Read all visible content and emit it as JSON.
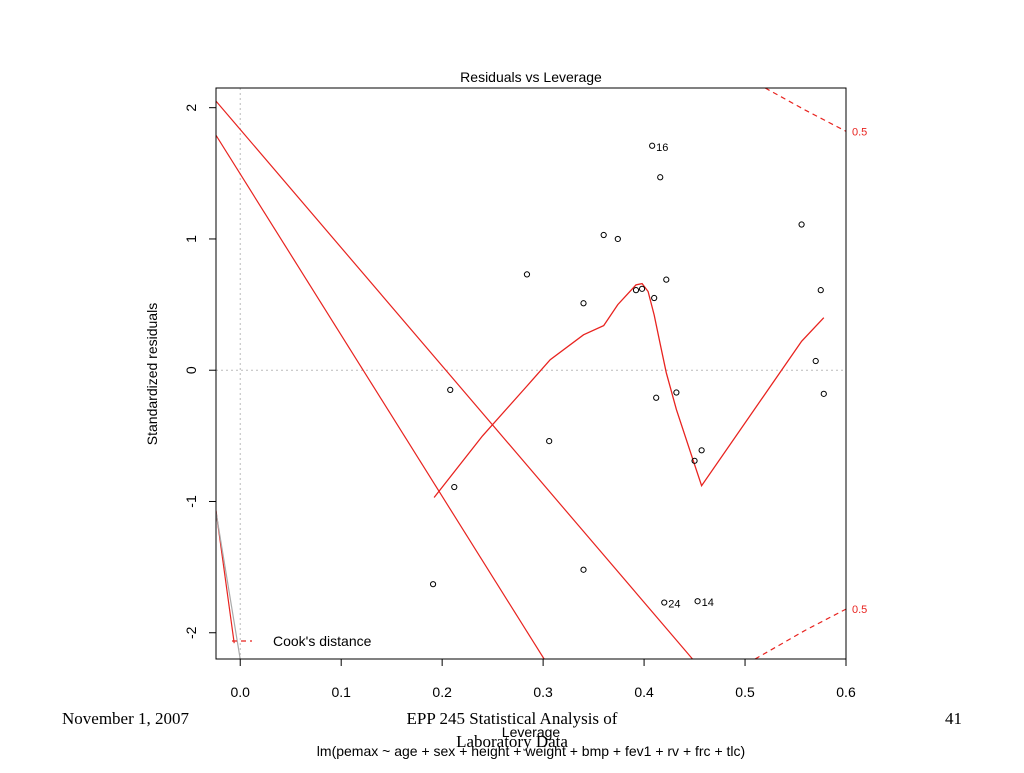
{
  "chart_data": {
    "type": "scatter",
    "title": "Residuals vs Leverage",
    "xlabel": "Leverage",
    "ylabel": "Standardized residuals",
    "caption": "lm(pemax ~ age + sex + height + weight + bmp + fev1 + rv + frc + tlc)",
    "xlim": [
      -0.024,
      0.6
    ],
    "ylim": [
      -2.2,
      2.15
    ],
    "x_ticks": [
      0.0,
      0.1,
      0.2,
      0.3,
      0.4,
      0.5,
      0.6
    ],
    "x_tick_labels": [
      "0.0",
      "0.1",
      "0.2",
      "0.3",
      "0.4",
      "0.5",
      "0.6"
    ],
    "y_ticks": [
      -2,
      -1,
      0,
      1,
      2
    ],
    "y_tick_labels": [
      "-2",
      "-1",
      "0",
      "1",
      "2"
    ],
    "grid": false,
    "reference_lines": {
      "x": 0,
      "y": 0
    },
    "points": [
      {
        "x": 0.408,
        "y": 1.71,
        "label": "16"
      },
      {
        "x": 0.416,
        "y": 1.47
      },
      {
        "x": 0.556,
        "y": 1.11
      },
      {
        "x": 0.36,
        "y": 1.03
      },
      {
        "x": 0.374,
        "y": 1.0
      },
      {
        "x": 0.284,
        "y": 0.73
      },
      {
        "x": 0.422,
        "y": 0.69
      },
      {
        "x": 0.575,
        "y": 0.61
      },
      {
        "x": 0.392,
        "y": 0.61
      },
      {
        "x": 0.398,
        "y": 0.62
      },
      {
        "x": 0.41,
        "y": 0.55
      },
      {
        "x": 0.34,
        "y": 0.51
      },
      {
        "x": 0.57,
        "y": 0.07
      },
      {
        "x": 0.208,
        "y": -0.15
      },
      {
        "x": 0.432,
        "y": -0.17
      },
      {
        "x": 0.578,
        "y": -0.18
      },
      {
        "x": 0.412,
        "y": -0.21
      },
      {
        "x": 0.306,
        "y": -0.54
      },
      {
        "x": 0.457,
        "y": -0.61
      },
      {
        "x": 0.45,
        "y": -0.69
      },
      {
        "x": 0.212,
        "y": -0.89
      },
      {
        "x": 0.191,
        "y": -1.63
      },
      {
        "x": 0.34,
        "y": -1.52
      },
      {
        "x": 0.42,
        "y": -1.77,
        "label": "24"
      },
      {
        "x": 0.453,
        "y": -1.76,
        "label": "14"
      }
    ],
    "smooth_line": {
      "color": "#e8231f",
      "x": [
        0.192,
        0.24,
        0.284,
        0.307,
        0.34,
        0.36,
        0.374,
        0.392,
        0.398,
        0.404,
        0.41,
        0.416,
        0.422,
        0.432,
        0.45,
        0.457,
        0.556,
        0.578
      ],
      "y": [
        -0.97,
        -0.5,
        -0.12,
        0.08,
        0.27,
        0.34,
        0.5,
        0.65,
        0.66,
        0.6,
        0.42,
        0.2,
        -0.02,
        -0.3,
        -0.72,
        -0.88,
        0.22,
        0.4
      ]
    },
    "curves": [
      {
        "name": "Cook's distance",
        "style": "dashed",
        "color": "#e8231f",
        "label": "0.5",
        "x": [
          0.52,
          0.56,
          0.6
        ],
        "y": [
          2.15,
          1.98,
          1.82
        ]
      },
      {
        "name": "Cook's distance",
        "style": "dashed",
        "color": "#e8231f",
        "label": "0.5",
        "x": [
          0.51,
          0.56,
          0.6
        ],
        "y": [
          -2.2,
          -1.98,
          -1.82
        ]
      }
    ],
    "other_lines": [
      {
        "color": "#e8231f",
        "x": [
          -0.024,
          0.448
        ],
        "y": [
          2.05,
          -2.2
        ]
      },
      {
        "color": "#e8231f",
        "x": [
          -0.024,
          0.301
        ],
        "y": [
          1.79,
          -2.2
        ]
      },
      {
        "color": "#e8231f",
        "x": [
          -0.024,
          -0.006
        ],
        "y": [
          -1.07,
          -2.08
        ]
      },
      {
        "color": "#aaaaaa",
        "x": [
          -0.024,
          0.0
        ],
        "y": [
          -1.08,
          -2.2
        ]
      }
    ],
    "legend": {
      "position": "bottom-left",
      "entries": [
        {
          "label": "Cook's distance",
          "style": "dashed",
          "color": "#e8231f"
        }
      ]
    }
  },
  "footer": {
    "date": "November 1, 2007",
    "course_line1": "EPP 245 Statistical Analysis of",
    "course_line2": "Laboratory Data",
    "page_number": "41"
  }
}
